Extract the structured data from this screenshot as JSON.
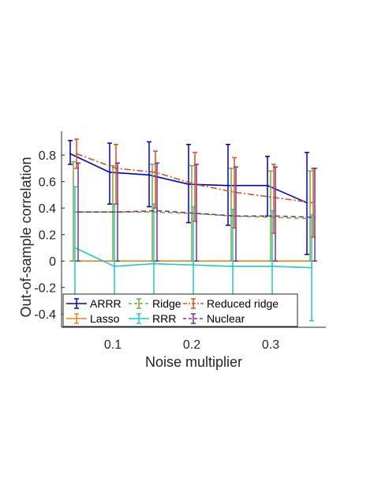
{
  "chart_data": {
    "type": "line",
    "title": "",
    "xlabel": "Noise multiplier",
    "ylabel": "Out-of-sample correlation",
    "xlim": [
      0.035,
      0.37
    ],
    "ylim": [
      -0.5,
      0.98
    ],
    "xticks": [
      0.1,
      0.2,
      0.3
    ],
    "xtick_labels": [
      "0.1",
      "0.2",
      "0.3"
    ],
    "yticks": [
      -0.4,
      -0.2,
      0,
      0.2,
      0.4,
      0.6,
      0.8
    ],
    "ytick_labels": [
      "-0.4",
      "-0.2",
      "0",
      "0.2",
      "0.4",
      "0.6",
      "0.8"
    ],
    "grid": false,
    "legend_position": "bottom",
    "x": [
      0.05,
      0.1,
      0.15,
      0.2,
      0.25,
      0.3,
      0.35
    ],
    "series": [
      {
        "name": "ARRR",
        "color": "#0000d0",
        "dash": "solid",
        "offset": -0.004,
        "values": [
          0.81,
          0.67,
          0.65,
          0.58,
          0.57,
          0.57,
          0.44
        ],
        "lower": [
          0.73,
          0.43,
          0.41,
          0.29,
          0.27,
          0.34,
          0.05
        ],
        "upper": [
          0.91,
          0.89,
          0.9,
          0.88,
          0.88,
          0.79,
          0.82
        ]
      },
      {
        "name": "Lasso",
        "color": "#e8871a",
        "dash": "solid",
        "offset": -0.002,
        "values": [
          0.0,
          0.0,
          0.0,
          0.0,
          0.0,
          0.0,
          0.0
        ],
        "lower": [
          0.0,
          0.0,
          0.0,
          0.0,
          0.0,
          0.0,
          0.0
        ],
        "upper": [
          0.0,
          0.0,
          0.0,
          0.0,
          0.0,
          0.0,
          0.0
        ]
      },
      {
        "name": "Ridge",
        "color": "#77ac30",
        "dash": "dashed",
        "offset": 0.0,
        "values": [
          0.37,
          0.37,
          0.37,
          0.36,
          0.34,
          0.33,
          0.32
        ],
        "lower": [
          0.0,
          0.0,
          0.0,
          0.0,
          0.0,
          0.0,
          0.0
        ],
        "upper": [
          0.75,
          0.72,
          0.73,
          0.72,
          0.7,
          0.68,
          0.68
        ]
      },
      {
        "name": "RRR",
        "color": "#20c8c8",
        "dash": "solid",
        "offset": 0.002,
        "values": [
          0.1,
          -0.04,
          -0.02,
          -0.03,
          -0.04,
          -0.04,
          -0.05
        ],
        "lower": [
          -0.36,
          -0.44,
          -0.4,
          -0.43,
          -0.44,
          -0.45,
          -0.45
        ],
        "upper": [
          0.56,
          0.43,
          0.43,
          0.41,
          0.39,
          0.38,
          0.35
        ]
      },
      {
        "name": "Reduced ridge",
        "color": "#d95319",
        "dash": "dashdot",
        "offset": 0.004,
        "values": [
          0.81,
          0.7,
          0.67,
          0.58,
          0.52,
          0.48,
          0.44
        ],
        "lower": [
          0.7,
          0.43,
          0.4,
          0.3,
          0.25,
          0.21,
          0.18
        ],
        "upper": [
          0.92,
          0.88,
          0.83,
          0.82,
          0.78,
          0.73,
          0.7
        ]
      },
      {
        "name": "Nuclear",
        "color": "#7e2f8e",
        "dash": "dashed",
        "offset": 0.006,
        "values": [
          0.37,
          0.37,
          0.38,
          0.36,
          0.34,
          0.34,
          0.33
        ],
        "lower": [
          0.0,
          0.0,
          0.0,
          0.0,
          0.0,
          0.0,
          0.0
        ],
        "upper": [
          0.74,
          0.74,
          0.74,
          0.73,
          0.71,
          0.71,
          0.7
        ]
      }
    ]
  }
}
